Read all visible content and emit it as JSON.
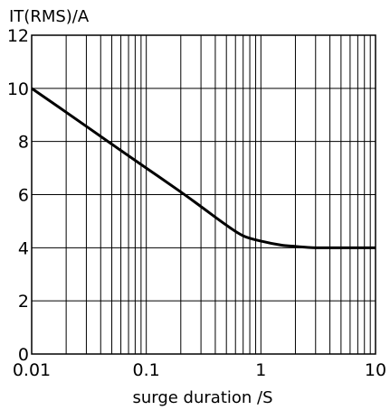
{
  "chart_data": {
    "type": "line",
    "title": "",
    "ylabel": "IT(RMS)/A",
    "xlabel": "surge duration /S",
    "x_scale": "log",
    "xlim": [
      0.01,
      10
    ],
    "ylim": [
      0,
      12
    ],
    "grid": true,
    "x_ticks": [
      0.01,
      0.1,
      1,
      10
    ],
    "x_tick_labels": [
      "0.01",
      "0.1",
      "1",
      "10"
    ],
    "y_ticks": [
      0,
      2,
      4,
      6,
      8,
      10,
      12
    ],
    "y_tick_labels": [
      "0",
      "2",
      "4",
      "6",
      "8",
      "10",
      "12"
    ],
    "series": [
      {
        "x": [
          0.01,
          0.02,
          0.05,
          0.1,
          0.2,
          0.3,
          0.5,
          0.7,
          1,
          1.5,
          2,
          3,
          5,
          10
        ],
        "values": [
          10,
          9.1,
          7.9,
          7.0,
          6.1,
          5.55,
          4.85,
          4.45,
          4.25,
          4.1,
          4.05,
          4.0,
          4.0,
          4.0
        ],
        "color": "#000000"
      }
    ]
  }
}
